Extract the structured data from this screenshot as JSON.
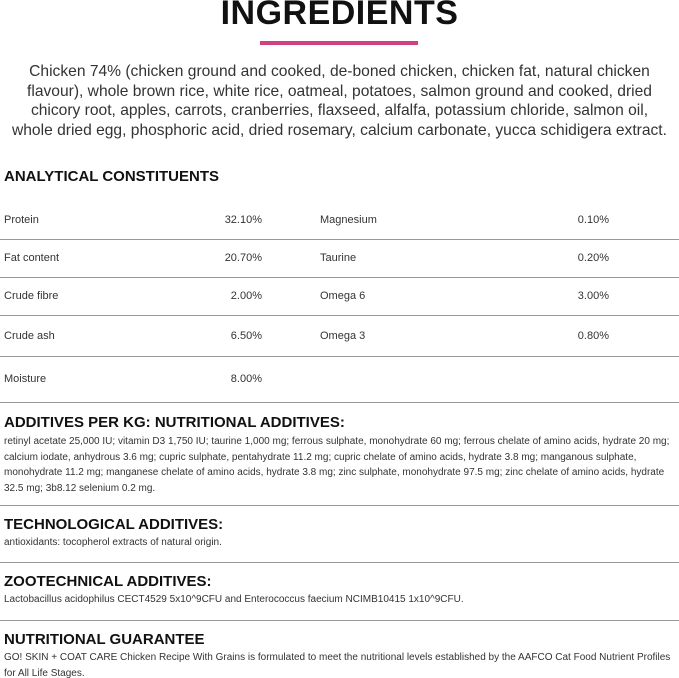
{
  "title": "INGREDIENTS",
  "accent_color": "#d1417f",
  "ingredients": "Chicken 74% (chicken ground and cooked, de-boned chicken, chicken fat, natural chicken flavour), whole brown rice, white rice, oatmeal, potatoes, salmon ground and cooked, dried chicory root, apples, carrots, cranberries, flaxseed, alfalfa, potassium chloride, salmon oil, whole dried egg, phosphoric acid, dried rosemary, calcium carbonate, yucca schidigera extract.",
  "analytical": {
    "heading": "ANALYTICAL CONSTITUENTS",
    "rows": [
      {
        "l1": "Protein",
        "v1": "32.10%",
        "l2": "Magnesium",
        "v2": "0.10%"
      },
      {
        "l1": "Fat content",
        "v1": "20.70%",
        "l2": "Taurine",
        "v2": "0.20%"
      },
      {
        "l1": "Crude fibre",
        "v1": "2.00%",
        "l2": "Omega 6",
        "v2": "3.00%"
      },
      {
        "l1": "Crude ash",
        "v1": "6.50%",
        "l2": "Omega 3",
        "v2": "0.80%"
      },
      {
        "l1": "Moisture",
        "v1": "8.00%",
        "l2": "",
        "v2": ""
      }
    ]
  },
  "nutritional_additives": {
    "heading": "ADDITIVES PER KG: NUTRITIONAL ADDITIVES:",
    "text": "retinyl acetate 25,000 IU; vitamin D3 1,750 IU; taurine 1,000 mg; ferrous sulphate, monohydrate 60 mg; ferrous chelate of amino acids, hydrate 20 mg; calcium iodate, anhydrous 3.6 mg; cupric sulphate, pentahydrate 11.2 mg; cupric chelate of amino acids, hydrate 3.8 mg; manganous sulphate, monohydrate 11.2 mg; manganese chelate of amino acids, hydrate 3.8 mg; zinc sulphate, monohydrate 97.5 mg; zinc chelate of amino acids, hydrate 32.5 mg; 3b8.12 selenium 0.2 mg."
  },
  "technological": {
    "heading": "TECHNOLOGICAL ADDITIVES:",
    "text": "antioxidants: tocopherol extracts of natural origin."
  },
  "zootechnical": {
    "heading": "ZOOTECHNICAL ADDITIVES:",
    "text": "Lactobacillus acidophilus CECT4529 5x10^9CFU and Enterococcus faecium NCIMB10415 1x10^9CFU."
  },
  "guarantee": {
    "heading": "NUTRITIONAL GUARANTEE",
    "text": "GO! SKIN + COAT CARE Chicken Recipe With Grains is formulated to meet the nutritional levels established by the AAFCO Cat Food Nutrient Profiles for All Life Stages."
  }
}
